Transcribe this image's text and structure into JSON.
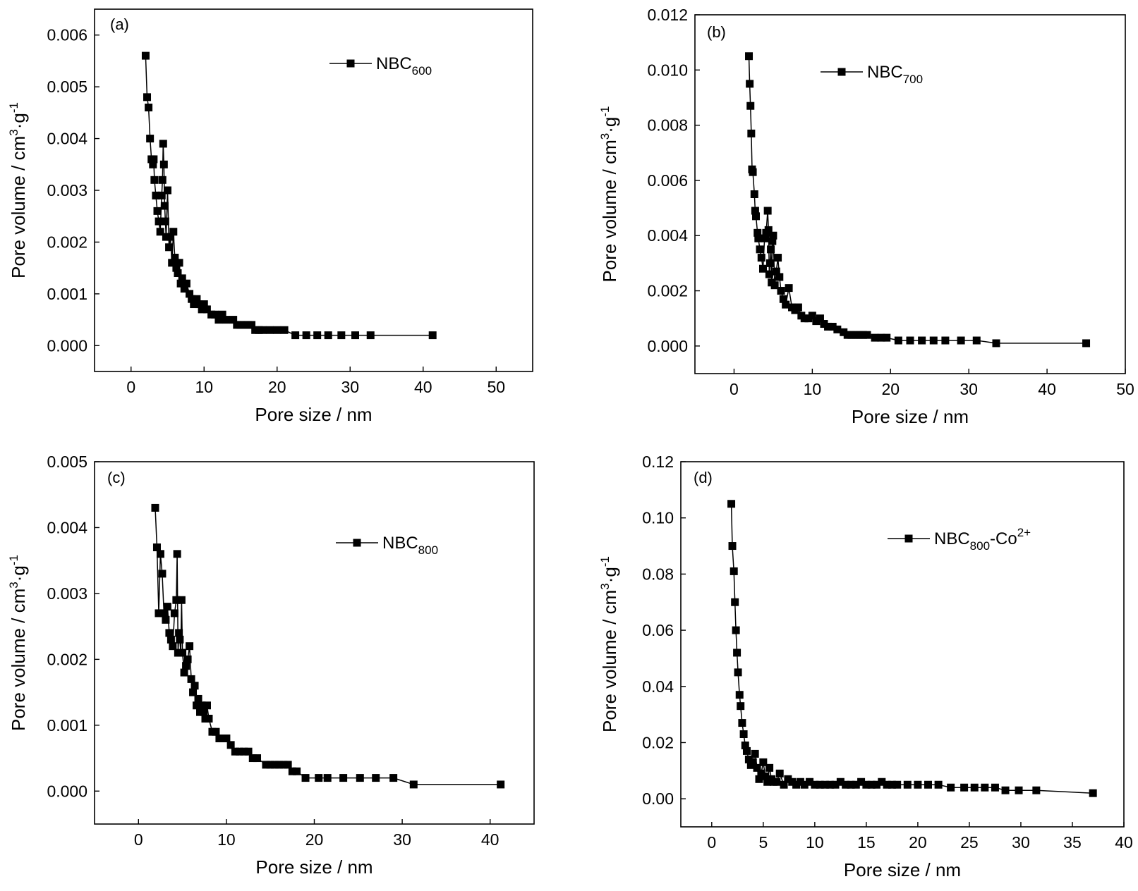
{
  "chart_data": [
    {
      "type": "line",
      "panel_label": "(a)",
      "xlabel": "Pore size / nm",
      "ylabel": "Pore volume / cm",
      "ylabel_sup1": "3",
      "ylabel_mid": "·g",
      "ylabel_sup2": "-1",
      "xlim": [
        -5,
        55
      ],
      "ylim": [
        -0.0005,
        0.0065
      ],
      "x_ticks": [
        "0",
        "10",
        "20",
        "30",
        "40",
        "50"
      ],
      "y_ticks": [
        "0.000",
        "0.001",
        "0.002",
        "0.003",
        "0.004",
        "0.005",
        "0.006"
      ],
      "legend": {
        "main": "NBC",
        "sub": "600",
        "sup": ""
      },
      "series": [
        {
          "x": [
            2.0,
            2.2,
            2.4,
            2.6,
            2.8,
            3.0,
            3.1,
            3.2,
            3.4,
            3.6,
            3.8,
            4.0,
            4.2,
            4.3,
            4.4,
            4.5,
            4.6,
            4.7,
            4.8,
            5.0,
            5.2,
            5.4,
            5.6,
            5.8,
            6.0,
            6.2,
            6.4,
            6.6,
            6.8,
            7.0,
            7.3,
            7.6,
            8.0,
            8.3,
            8.6,
            9.0,
            9.3,
            9.7,
            10.0,
            10.4,
            11.0,
            11.5,
            12.0,
            12.5,
            13.0,
            14.0,
            14.5,
            15.0,
            15.5,
            16.0,
            16.5,
            17.0,
            17.5,
            18.0,
            19.0,
            20.0,
            21.0,
            22.5,
            24.0,
            25.5,
            27.0,
            28.8,
            30.7,
            32.8,
            41.3
          ],
          "y": [
            0.0056,
            0.0048,
            0.0046,
            0.004,
            0.0036,
            0.0035,
            0.0036,
            0.0032,
            0.0029,
            0.0026,
            0.0024,
            0.0022,
            0.0029,
            0.0032,
            0.0039,
            0.0035,
            0.0027,
            0.0024,
            0.0021,
            0.003,
            0.0019,
            0.0021,
            0.0016,
            0.0022,
            0.0017,
            0.0015,
            0.0014,
            0.0016,
            0.0012,
            0.0013,
            0.0011,
            0.0012,
            0.001,
            0.0009,
            0.0008,
            0.0009,
            0.0008,
            0.0007,
            0.0008,
            0.0007,
            0.0006,
            0.0006,
            0.0005,
            0.0006,
            0.0005,
            0.0005,
            0.0004,
            0.0004,
            0.0004,
            0.0004,
            0.0004,
            0.0003,
            0.0003,
            0.0003,
            0.0003,
            0.0003,
            0.0003,
            0.0002,
            0.0002,
            0.0002,
            0.0002,
            0.0002,
            0.0002,
            0.0002,
            0.0002
          ]
        }
      ]
    },
    {
      "type": "line",
      "panel_label": "(b)",
      "xlabel": "Pore size / nm",
      "ylabel": "Pore volume / cm",
      "ylabel_sup1": "3",
      "ylabel_mid": "·g",
      "ylabel_sup2": "-1",
      "xlim": [
        -5,
        50
      ],
      "ylim": [
        -0.001,
        0.012
      ],
      "x_ticks": [
        "0",
        "10",
        "20",
        "30",
        "40",
        "50"
      ],
      "y_ticks": [
        "0.000",
        "0.002",
        "0.004",
        "0.006",
        "0.008",
        "0.010",
        "0.012"
      ],
      "legend": {
        "main": "NBC",
        "sub": "700",
        "sup": ""
      },
      "series": [
        {
          "x": [
            1.9,
            2.0,
            2.1,
            2.2,
            2.3,
            2.4,
            2.6,
            2.7,
            2.8,
            3.0,
            3.1,
            3.3,
            3.5,
            3.7,
            3.9,
            4.1,
            4.3,
            4.4,
            4.5,
            4.6,
            4.7,
            4.8,
            4.9,
            5.0,
            5.2,
            5.4,
            5.6,
            5.8,
            6.0,
            6.3,
            6.6,
            7.0,
            7.4,
            7.8,
            8.2,
            8.6,
            9.0,
            9.5,
            10.0,
            10.5,
            11.0,
            11.5,
            12.0,
            12.6,
            13.2,
            14.0,
            14.5,
            15.0,
            15.5,
            16.0,
            16.5,
            17.0,
            18.0,
            18.8,
            19.5,
            21.0,
            22.5,
            24.0,
            25.5,
            27.0,
            29.0,
            31.0,
            33.5,
            45.0
          ],
          "y": [
            0.0105,
            0.0095,
            0.0087,
            0.0077,
            0.0064,
            0.0063,
            0.0055,
            0.0049,
            0.0047,
            0.0041,
            0.0039,
            0.0035,
            0.0032,
            0.0028,
            0.0039,
            0.0041,
            0.0049,
            0.0042,
            0.0026,
            0.003,
            0.0035,
            0.0023,
            0.0038,
            0.004,
            0.0022,
            0.0027,
            0.0032,
            0.0025,
            0.002,
            0.0017,
            0.0015,
            0.0021,
            0.0014,
            0.0013,
            0.0014,
            0.0011,
            0.001,
            0.001,
            0.0011,
            0.0009,
            0.001,
            0.0008,
            0.0007,
            0.0007,
            0.0006,
            0.0005,
            0.0004,
            0.0004,
            0.0004,
            0.0004,
            0.0004,
            0.0004,
            0.0003,
            0.0003,
            0.0003,
            0.0002,
            0.0002,
            0.0002,
            0.0002,
            0.0002,
            0.0002,
            0.0002,
            0.0001,
            0.0001
          ]
        }
      ]
    },
    {
      "type": "line",
      "panel_label": "(c)",
      "xlabel": "Pore size / nm",
      "ylabel": "Pore volume / cm",
      "ylabel_sup1": "3",
      "ylabel_mid": "·g",
      "ylabel_sup2": "-1",
      "xlim": [
        -5,
        45
      ],
      "ylim": [
        -0.0005,
        0.005
      ],
      "x_ticks": [
        "0",
        "10",
        "20",
        "30",
        "40"
      ],
      "y_ticks": [
        "0.000",
        "0.001",
        "0.002",
        "0.003",
        "0.004",
        "0.005"
      ],
      "legend": {
        "main": "NBC",
        "sub": "800",
        "sup": ""
      },
      "series": [
        {
          "x": [
            1.9,
            2.1,
            2.3,
            2.5,
            2.7,
            2.9,
            3.1,
            3.3,
            3.5,
            3.7,
            3.9,
            4.1,
            4.3,
            4.4,
            4.5,
            4.6,
            4.7,
            4.8,
            4.9,
            5.0,
            5.2,
            5.4,
            5.6,
            5.8,
            6.0,
            6.2,
            6.4,
            6.6,
            6.8,
            7.0,
            7.2,
            7.4,
            7.6,
            7.8,
            8.0,
            8.4,
            8.8,
            9.2,
            9.6,
            10.0,
            10.5,
            11.0,
            11.5,
            12.0,
            12.5,
            13.0,
            13.5,
            14.5,
            15.0,
            15.5,
            16.0,
            16.5,
            17.0,
            17.5,
            18.0,
            19.0,
            20.5,
            21.5,
            23.3,
            25.2,
            27.0,
            29.0,
            31.3,
            41.2
          ],
          "y": [
            0.0043,
            0.0037,
            0.0027,
            0.0036,
            0.0033,
            0.0027,
            0.0026,
            0.0028,
            0.0024,
            0.0023,
            0.0022,
            0.0027,
            0.0029,
            0.0036,
            0.0021,
            0.0024,
            0.0023,
            0.0021,
            0.0029,
            0.0021,
            0.0018,
            0.0019,
            0.002,
            0.0022,
            0.0017,
            0.0015,
            0.0016,
            0.0013,
            0.0014,
            0.0012,
            0.0013,
            0.0012,
            0.0011,
            0.0013,
            0.0011,
            0.0009,
            0.0009,
            0.0008,
            0.0008,
            0.0008,
            0.0007,
            0.0006,
            0.0006,
            0.0006,
            0.0006,
            0.0005,
            0.0005,
            0.0004,
            0.0004,
            0.0004,
            0.0004,
            0.0004,
            0.0004,
            0.0003,
            0.0003,
            0.0002,
            0.0002,
            0.0002,
            0.0002,
            0.0002,
            0.0002,
            0.0002,
            0.0001,
            0.0001
          ]
        }
      ]
    },
    {
      "type": "line",
      "panel_label": "(d)",
      "xlabel": "Pore size / nm",
      "ylabel": "Pore volume / cm",
      "ylabel_sup1": "3",
      "ylabel_mid": "·g",
      "ylabel_sup2": "-1",
      "xlim": [
        -3,
        40
      ],
      "ylim": [
        -0.01,
        0.12
      ],
      "x_ticks": [
        "0",
        "5",
        "10",
        "15",
        "20",
        "25",
        "30",
        "35",
        "40"
      ],
      "y_ticks": [
        "0.00",
        "0.02",
        "0.04",
        "0.06",
        "0.08",
        "0.10",
        "0.12"
      ],
      "legend": {
        "main": "NBC",
        "sub": "800",
        "sup": "2+",
        "suffix": "-Co"
      },
      "series": [
        {
          "x": [
            1.9,
            2.0,
            2.15,
            2.25,
            2.35,
            2.45,
            2.55,
            2.7,
            2.8,
            2.95,
            3.1,
            3.25,
            3.4,
            3.6,
            3.8,
            4.0,
            4.2,
            4.4,
            4.6,
            4.8,
            5.0,
            5.2,
            5.4,
            5.6,
            5.8,
            6.0,
            6.3,
            6.6,
            7.0,
            7.4,
            7.8,
            8.2,
            8.6,
            9.0,
            9.5,
            10.0,
            10.5,
            11.0,
            11.5,
            12.0,
            12.5,
            13.0,
            13.5,
            14.0,
            14.5,
            15.0,
            15.5,
            16.0,
            16.5,
            17.0,
            17.5,
            18.0,
            19.0,
            20.0,
            21.0,
            22.0,
            23.2,
            24.5,
            25.5,
            26.5,
            27.5,
            28.5,
            29.8,
            31.5,
            37.0
          ],
          "y": [
            0.105,
            0.09,
            0.081,
            0.07,
            0.06,
            0.052,
            0.045,
            0.037,
            0.033,
            0.027,
            0.023,
            0.019,
            0.017,
            0.014,
            0.012,
            0.013,
            0.016,
            0.011,
            0.007,
            0.009,
            0.013,
            0.008,
            0.006,
            0.011,
            0.007,
            0.006,
            0.006,
            0.009,
            0.005,
            0.007,
            0.006,
            0.005,
            0.006,
            0.005,
            0.006,
            0.005,
            0.005,
            0.005,
            0.005,
            0.005,
            0.006,
            0.005,
            0.005,
            0.005,
            0.006,
            0.005,
            0.005,
            0.005,
            0.006,
            0.005,
            0.005,
            0.005,
            0.005,
            0.005,
            0.005,
            0.005,
            0.004,
            0.004,
            0.004,
            0.004,
            0.004,
            0.003,
            0.003,
            0.003,
            0.002
          ]
        }
      ]
    }
  ]
}
